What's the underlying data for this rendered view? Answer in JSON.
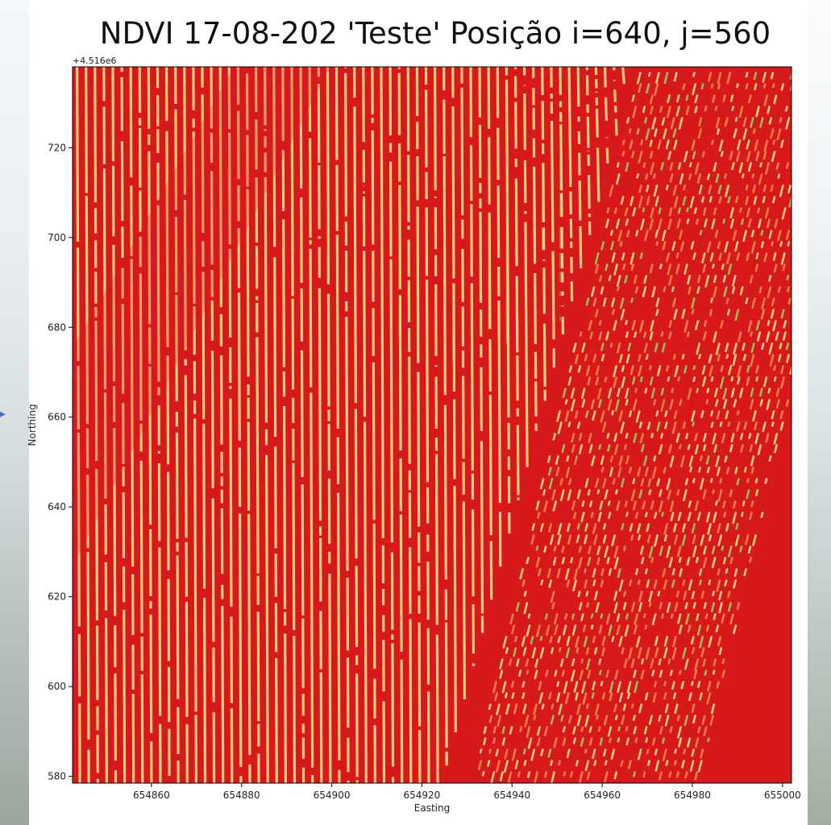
{
  "chart_data": {
    "type": "heatmap",
    "title": "NDVI 17-08-202 'Teste' Posição i=640, j=560",
    "xlabel": "Easting",
    "ylabel": "Northing",
    "y_offset_label": "+4.516e6",
    "x_ticks": [
      654860,
      654880,
      654900,
      654920,
      654940,
      654960,
      654980,
      655000
    ],
    "x_tick_labels": [
      "654860",
      "654880",
      "654900",
      "654920",
      "654940",
      "654960",
      "654980",
      "655000"
    ],
    "y_ticks": [
      580,
      600,
      620,
      640,
      660,
      680,
      700,
      720
    ],
    "y_tick_labels": [
      "580",
      "600",
      "620",
      "640",
      "660",
      "680",
      "700",
      "720"
    ],
    "xlim": [
      654842.5,
      655002.0
    ],
    "ylim": [
      578.5,
      738.0
    ],
    "colormap": "RdYlGn",
    "colors": {
      "low": "#d7191c",
      "mid_low": "#f08a4b",
      "mid": "#fee08b",
      "high": "#91cf60"
    },
    "regions": [
      {
        "name": "row-crop",
        "pattern": "vertical stripes",
        "dominant_value": "low"
      },
      {
        "name": "bare-gap",
        "pattern": "uniform",
        "dominant_value": "low"
      },
      {
        "name": "dotted-field",
        "pattern": "diagonal dotted rows",
        "dominant_value": "low"
      }
    ]
  }
}
